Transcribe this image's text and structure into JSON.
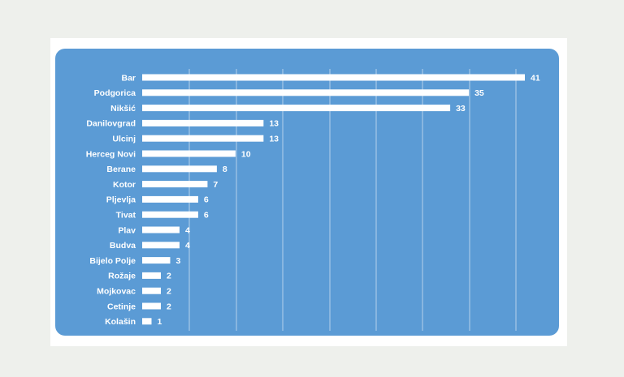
{
  "chart_data": {
    "type": "bar",
    "orientation": "horizontal",
    "title": "",
    "xlabel": "",
    "ylabel": "",
    "xlim": [
      0,
      41
    ],
    "grid": true,
    "legend": "none",
    "colors": {
      "page_background": "#eef0ec",
      "card": "#ffffff",
      "panel": "#5b9bd5",
      "bars": "#ffffff",
      "text": "#ffffff"
    },
    "categories": [
      "Bar",
      "Podgorica",
      "Nikšić",
      "Danilovgrad",
      "Ulcinj",
      "Herceg Novi",
      "Berane",
      "Kotor",
      "Pljevlja",
      "Tivat",
      "Plav",
      "Budva",
      "Bijelo Polje",
      "Rožaje",
      "Mojkovac",
      "Cetinje",
      "Kolašin"
    ],
    "values": [
      41,
      35,
      33,
      13,
      13,
      10,
      8,
      7,
      6,
      6,
      4,
      4,
      3,
      2,
      2,
      2,
      1
    ]
  }
}
